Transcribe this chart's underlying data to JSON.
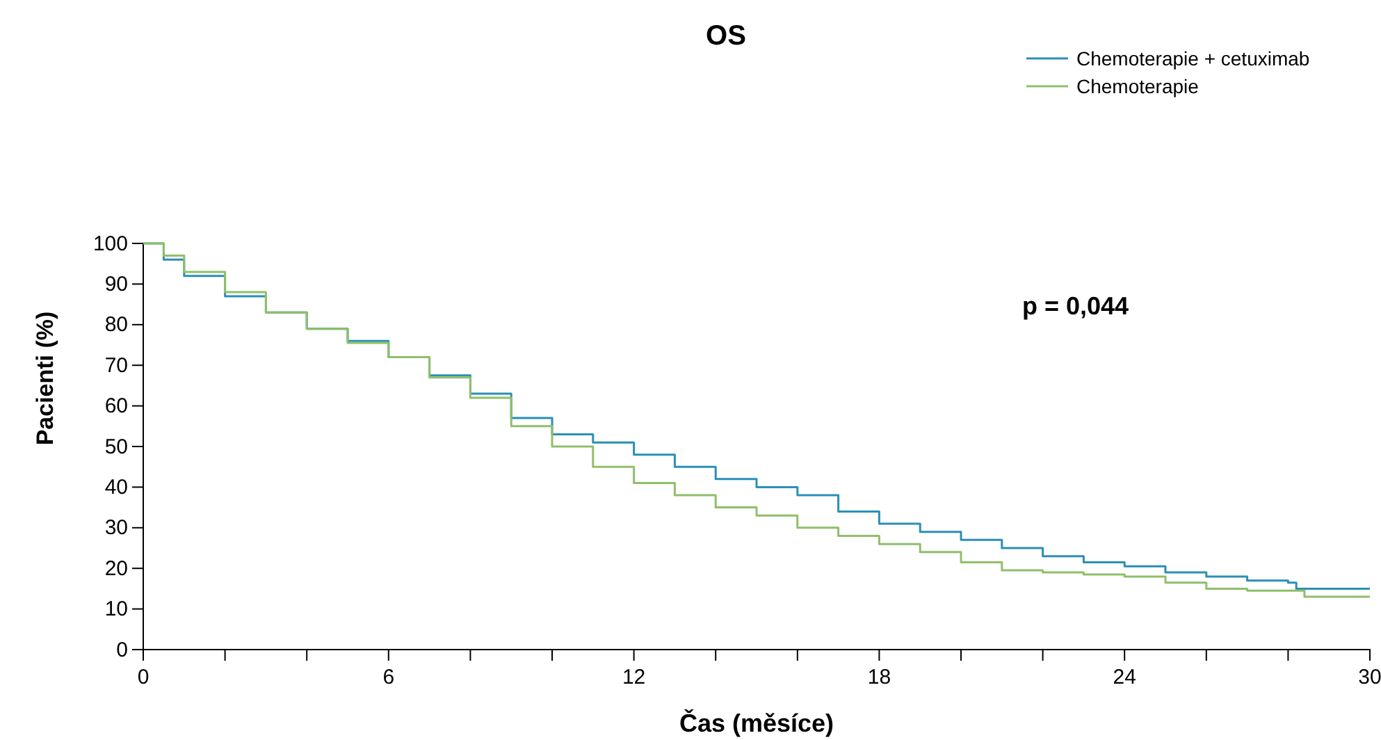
{
  "chart_data": {
    "type": "step",
    "title": "OS",
    "xlabel": "Čas (měsíce)",
    "ylabel": "Pacienti (%)",
    "xlim": [
      0,
      30
    ],
    "ylim": [
      0,
      100
    ],
    "xticks": [
      0,
      {
        "value": 2,
        "label": null
      },
      {
        "value": 4,
        "label": null
      },
      6,
      {
        "value": 8,
        "label": null
      },
      {
        "value": 10,
        "label": null
      },
      12,
      {
        "value": 14,
        "label": null
      },
      {
        "value": 16,
        "label": null
      },
      18,
      {
        "value": 20,
        "label": null
      },
      {
        "value": 22,
        "label": null
      },
      24,
      {
        "value": 26,
        "label": null
      },
      {
        "value": 28,
        "label": null
      },
      30
    ],
    "yticks": [
      0,
      10,
      20,
      30,
      40,
      50,
      60,
      70,
      80,
      90,
      100
    ],
    "grid": false,
    "legend": "top right",
    "annotations": [
      "p = 0,044"
    ],
    "x": [
      0,
      0.5,
      1,
      2,
      3,
      4,
      5,
      6,
      7,
      8,
      9,
      10,
      11,
      12,
      13,
      14,
      15,
      16,
      17,
      18,
      19,
      20,
      21,
      22,
      23,
      24,
      25,
      26,
      27,
      28,
      28.2,
      30
    ],
    "series": [
      {
        "name": "Chemoterapie + cetuximab",
        "color": "#2a8fb5",
        "values": [
          100,
          96,
          92,
          87,
          83,
          79,
          76,
          72,
          67.5,
          63,
          57,
          53,
          51,
          48,
          45,
          42,
          40,
          38,
          34,
          31,
          29,
          27,
          25,
          23,
          21.5,
          20.5,
          19,
          18,
          17,
          16.5,
          15,
          15
        ]
      },
      {
        "name": "Chemoterapie",
        "color": "#8fbf6a",
        "x": [
          0,
          0.5,
          1,
          2,
          3,
          4,
          5,
          6,
          7,
          8,
          9,
          10,
          11,
          12,
          13,
          14,
          15,
          16,
          17,
          18,
          19,
          20,
          21,
          22,
          23,
          24,
          25,
          26,
          27,
          28,
          28.4,
          30
        ],
        "values": [
          100,
          97,
          93,
          88,
          83,
          79,
          75.5,
          72,
          67,
          62,
          55,
          50,
          45,
          41,
          38,
          35,
          33,
          30,
          28,
          26,
          24,
          21.5,
          19.5,
          19,
          18.5,
          18,
          16.5,
          15,
          14.5,
          14.5,
          13,
          13
        ]
      }
    ]
  }
}
